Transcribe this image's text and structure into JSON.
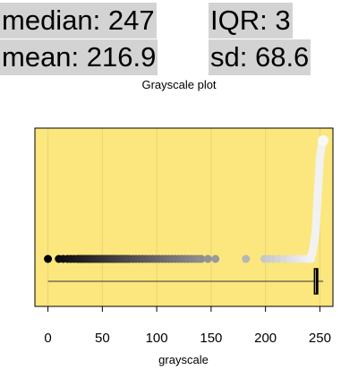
{
  "stats": {
    "median": "median: 247",
    "iqr": "IQR: 3",
    "mean": "mean: 216.9",
    "sd": "sd: 68.6"
  },
  "colors": {
    "panel_bg": "#fbe77d",
    "stat_bg": "#d3d3d3",
    "grid": "#e6d679"
  },
  "chart_data": {
    "type": "scatter",
    "title": "Grayscale plot",
    "xlabel": "grayscale",
    "ylabel": "",
    "xlim": [
      -12,
      262
    ],
    "xticks": [
      0,
      50,
      100,
      150,
      200,
      250
    ],
    "grid": true,
    "strip_points": [
      0,
      10,
      14,
      18,
      21,
      24,
      27,
      29,
      31,
      33,
      35,
      37,
      39,
      41,
      43,
      45,
      47,
      49,
      51,
      53,
      55,
      57,
      59,
      61,
      63,
      65,
      67,
      69,
      71,
      73,
      75,
      78,
      81,
      84,
      87,
      90,
      93,
      96,
      99,
      102,
      105,
      108,
      111,
      114,
      117,
      120,
      123,
      126,
      129,
      132,
      135,
      138,
      141,
      147,
      154,
      182,
      199,
      203,
      207,
      212,
      217,
      222,
      225,
      228,
      231,
      234,
      236,
      238,
      240,
      242
    ],
    "sorted_curve": {
      "x": [
        242,
        243,
        244,
        245,
        246,
        246.5,
        247,
        247.5,
        248,
        248.5,
        249,
        249.5,
        250,
        251,
        252,
        253
      ],
      "q": [
        0.02,
        0.05,
        0.1,
        0.16,
        0.22,
        0.3,
        0.38,
        0.46,
        0.54,
        0.62,
        0.7,
        0.78,
        0.86,
        0.92,
        0.97,
        1.0
      ]
    },
    "boxplot": {
      "min": 0,
      "q1": 245,
      "median": 247,
      "q3": 248,
      "max": 253
    }
  }
}
